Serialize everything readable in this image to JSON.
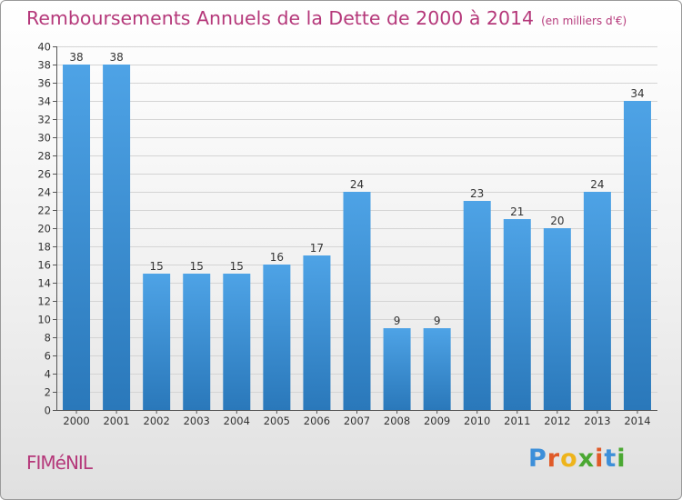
{
  "chart_data": {
    "type": "bar",
    "title": "Remboursements Annuels de la Dette de 2000 à 2014",
    "subtitle": "(en milliers d'€)",
    "categories": [
      "2000",
      "2001",
      "2002",
      "2003",
      "2004",
      "2005",
      "2006",
      "2007",
      "2008",
      "2009",
      "2010",
      "2011",
      "2012",
      "2013",
      "2014"
    ],
    "values": [
      38,
      38,
      15,
      15,
      15,
      16,
      17,
      24,
      9,
      9,
      23,
      21,
      20,
      24,
      34
    ],
    "ylim": [
      0,
      40
    ],
    "ytick_step": 2,
    "grid": true,
    "bar_color": "#4ea3e6",
    "bar_color_dark": "#2a78ba"
  },
  "footer": {
    "commune": "FIMéNIL",
    "logo_letters": [
      "P",
      "r",
      "o",
      "x",
      "i",
      "t",
      "i"
    ],
    "logo_colors": [
      "#3d8fd9",
      "#e05a28",
      "#eeb41b",
      "#4aa832",
      "#e05a28",
      "#3d8fd9",
      "#4aa832"
    ]
  },
  "colors": {
    "title": "#b5387a"
  }
}
